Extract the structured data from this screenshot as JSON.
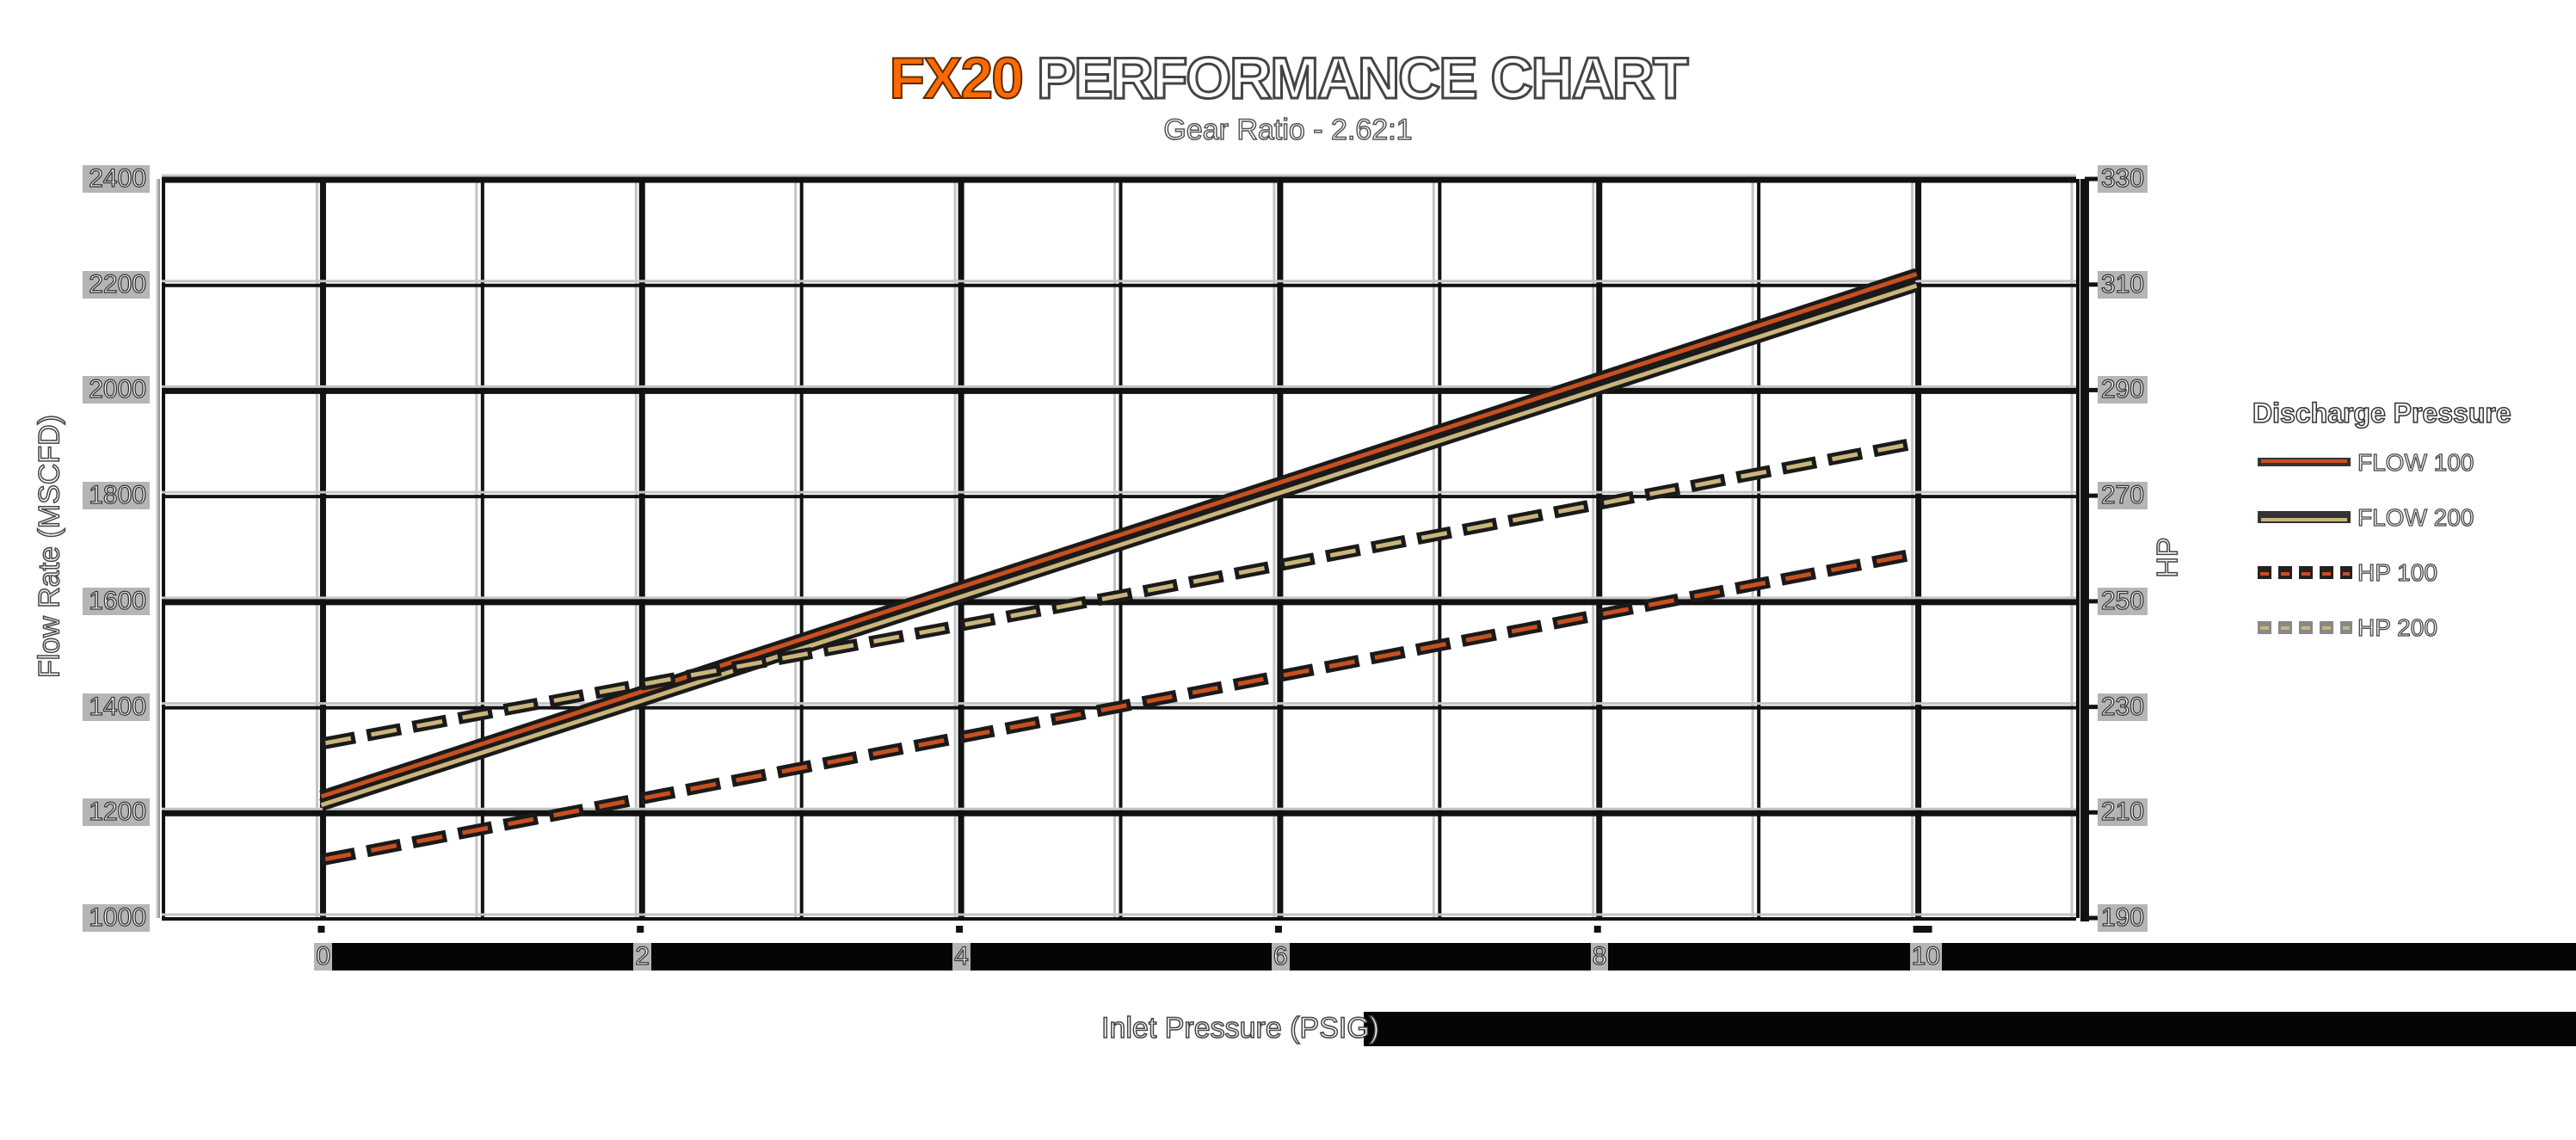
{
  "header": {
    "title_brand": "FX20",
    "title_rest": "PERFORMANCE CHART",
    "subtitle": "Gear Ratio - 2.62:1"
  },
  "axes": {
    "x_title": "Inlet Pressure (PSIG)",
    "y_left_title": "Flow Rate (MSCFD)",
    "y_right_title": "HP",
    "x_ticks": [
      "0",
      "2",
      "4",
      "6",
      "8",
      "10"
    ],
    "y_left_ticks": [
      "2400",
      "2200",
      "2000",
      "1800",
      "1600",
      "1400",
      "1200",
      "1000"
    ],
    "y_right_ticks": [
      "330",
      "310",
      "290",
      "270",
      "250",
      "230",
      "210",
      "190"
    ]
  },
  "legend": {
    "title": "Discharge Pressure",
    "items": [
      {
        "label": "FLOW 100",
        "color": "#c8501e",
        "style": "solid"
      },
      {
        "label": "FLOW 200",
        "color": "#c9b47a",
        "style": "solid"
      },
      {
        "label": "HP 100",
        "color": "#c8501e",
        "style": "dashed"
      },
      {
        "label": "HP 200",
        "color": "#c9b47a",
        "style": "dashed"
      }
    ]
  },
  "colors": {
    "brand": "#ff6a00",
    "flow100": "#c8501e",
    "flow200": "#c9b47a",
    "grid": "#111111"
  },
  "chart_data": {
    "type": "line",
    "title": "FX20 PERFORMANCE CHART",
    "subtitle": "Gear Ratio - 2.62:1",
    "xlabel": "Inlet Pressure (PSIG)",
    "ylabel": "Flow Rate (MSCFD)",
    "y2label": "HP",
    "x": [
      0,
      5,
      10
    ],
    "xlim": [
      -1,
      11
    ],
    "ylim": [
      1000,
      2400
    ],
    "y2lim": [
      190,
      330
    ],
    "grid": true,
    "legend_position": "right",
    "legend_title": "Discharge Pressure",
    "series": [
      {
        "name": "FLOW 100",
        "axis": "left",
        "style": "solid",
        "values": [
          1230,
          1725,
          2220
        ]
      },
      {
        "name": "FLOW 200",
        "axis": "left",
        "style": "solid",
        "values": [
          1214,
          1706,
          2198
        ]
      },
      {
        "name": "HP 100",
        "axis": "right",
        "style": "dashed",
        "values": [
          201,
          230,
          259
        ]
      },
      {
        "name": "HP 200",
        "axis": "right",
        "style": "dashed",
        "values": [
          223,
          251,
          280
        ]
      }
    ]
  }
}
